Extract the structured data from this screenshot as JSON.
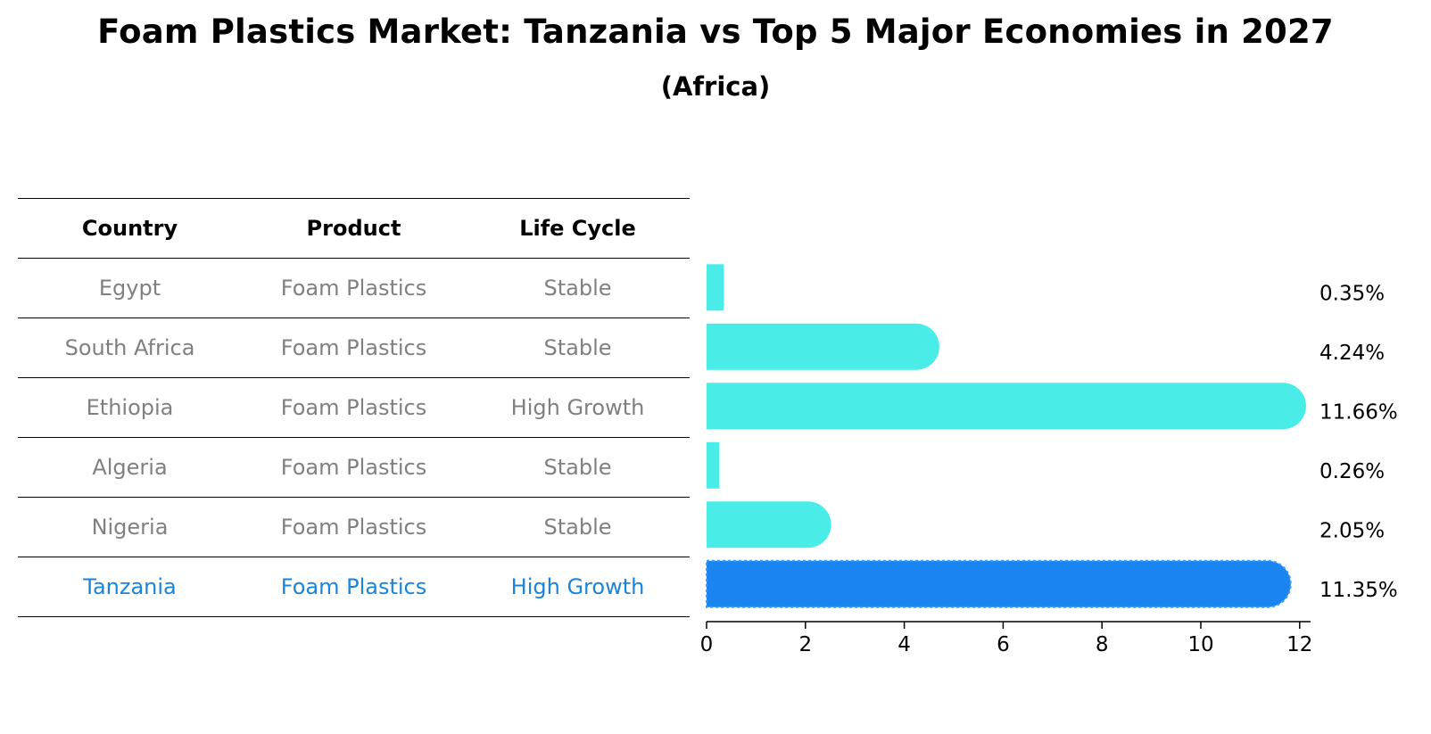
{
  "title": "Foam Plastics Market: Tanzania vs Top 5 Major Economies in 2027",
  "subtitle": "(Africa)",
  "table": {
    "headers": [
      "Country",
      "Product",
      "Life Cycle"
    ],
    "rows": [
      {
        "country": "Egypt",
        "product": "Foam Plastics",
        "life_cycle": "Stable"
      },
      {
        "country": "South Africa",
        "product": "Foam Plastics",
        "life_cycle": "Stable"
      },
      {
        "country": "Ethiopia",
        "product": "Foam Plastics",
        "life_cycle": "High Growth"
      },
      {
        "country": "Algeria",
        "product": "Foam Plastics",
        "life_cycle": "Stable"
      },
      {
        "country": "Nigeria",
        "product": "Foam Plastics",
        "life_cycle": "Stable"
      },
      {
        "country": "Tanzania",
        "product": "Foam Plastics",
        "life_cycle": "High Growth"
      }
    ]
  },
  "colors": {
    "bar": "#4aece8",
    "highlight_bar": "#1a84f0",
    "highlight_text": "#1a84d8",
    "muted_text": "#808080"
  },
  "chart_data": {
    "type": "bar",
    "orientation": "horizontal",
    "title": "Foam Plastics Market: Tanzania vs Top 5 Major Economies in 2027",
    "subtitle": "(Africa)",
    "categories": [
      "Egypt",
      "South Africa",
      "Ethiopia",
      "Algeria",
      "Nigeria",
      "Tanzania"
    ],
    "values": [
      0.35,
      4.24,
      11.66,
      0.26,
      2.05,
      11.35
    ],
    "value_labels": [
      "0.35%",
      "4.24%",
      "11.66%",
      "0.26%",
      "2.05%",
      "11.35%"
    ],
    "highlight": "Tanzania",
    "xlim": [
      0,
      12.2
    ],
    "xticks": [
      0,
      2,
      4,
      6,
      8,
      10,
      12
    ],
    "xlabel": "",
    "ylabel": "",
    "grid": false
  }
}
